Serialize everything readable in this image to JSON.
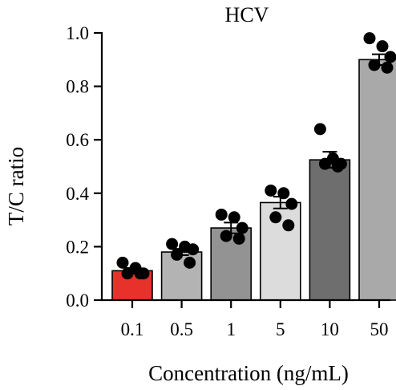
{
  "chart_data": {
    "type": "bar",
    "title": "HCV",
    "xlabel": "Concentration (ng/mL)",
    "ylabel": "T/C ratio",
    "categories": [
      "0.1",
      "0.5",
      "1",
      "5",
      "10",
      "50"
    ],
    "values": [
      0.11,
      0.18,
      0.27,
      0.365,
      0.525,
      0.9
    ],
    "errors": [
      0.01,
      0.012,
      0.02,
      0.022,
      0.03,
      0.02
    ],
    "points": [
      [
        0.14,
        0.12,
        0.1,
        0.1,
        0.1
      ],
      [
        0.21,
        0.2,
        0.19,
        0.17,
        0.14
      ],
      [
        0.32,
        0.31,
        0.27,
        0.24,
        0.23
      ],
      [
        0.41,
        0.4,
        0.36,
        0.31,
        0.28
      ],
      [
        0.64,
        0.53,
        0.51,
        0.51,
        0.5
      ],
      [
        0.98,
        0.95,
        0.91,
        0.88,
        0.87
      ]
    ],
    "colors": [
      "#e8312a",
      "#b3b3b3",
      "#939393",
      "#dcdcdc",
      "#6e6e6e",
      "#a9a9a9"
    ],
    "ylim": [
      0,
      1.0
    ],
    "yticks": [
      "0.0",
      "0.2",
      "0.4",
      "0.6",
      "0.8",
      "1.0"
    ],
    "grid": false,
    "legend": "none"
  }
}
